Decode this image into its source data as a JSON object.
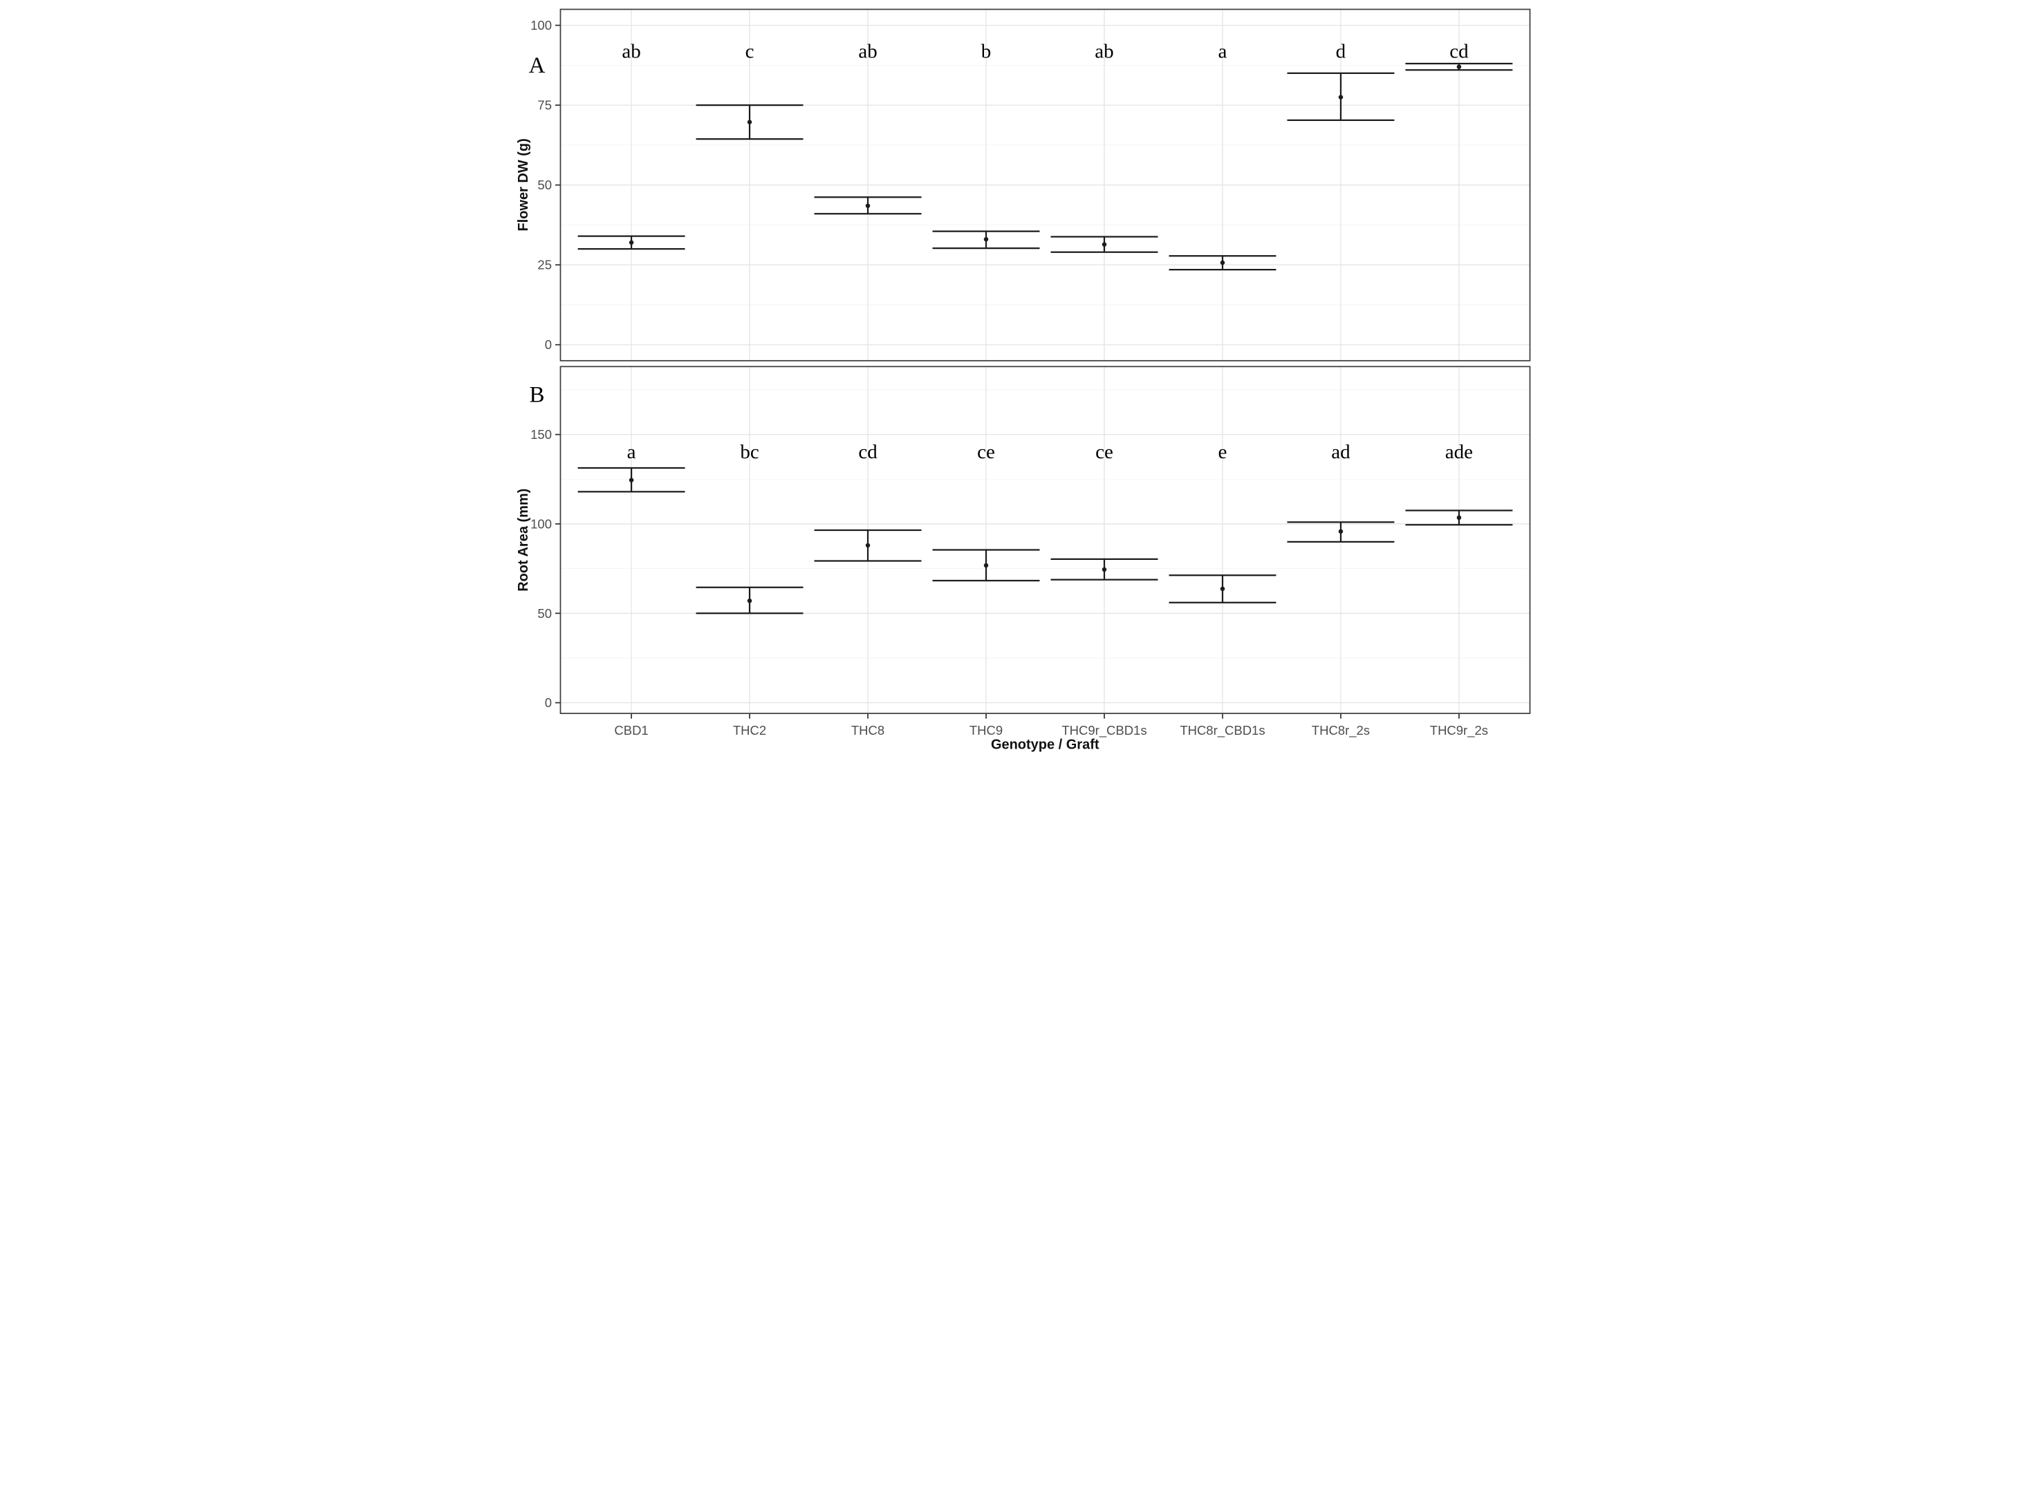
{
  "x_axis": {
    "title": "Genotype / Graft"
  },
  "styles": {
    "background": "#ffffff",
    "bar_color": "#1c1c1c",
    "grid_major": "#e4e4e4",
    "grid_minor": "#f2f2f2",
    "panel_border": "#3f3f3f",
    "tick_mark": "#333333",
    "tick_label_color": "#4d4d4d",
    "axis_title_color": "#111111",
    "letter_color": "#000000"
  },
  "chart_data": [
    {
      "type": "errorbar",
      "panel_label": "A",
      "title": "",
      "xlabel": "",
      "ylabel": "Flower DW (g)",
      "categories": [
        "CBD1",
        "THC2",
        "THC8",
        "THC9",
        "THC9r_CBD1s",
        "THC8r_CBD1s",
        "THC8r_2s",
        "THC9r_2s"
      ],
      "series": [
        {
          "name": "mean",
          "values": [
            32.0,
            69.7,
            43.5,
            33.0,
            31.4,
            25.7,
            77.5,
            87.0
          ]
        },
        {
          "name": "ci_low",
          "values": [
            30.0,
            64.4,
            41.0,
            30.2,
            29.0,
            23.5,
            70.3,
            86.0
          ]
        },
        {
          "name": "ci_high",
          "values": [
            34.0,
            75.0,
            46.2,
            35.5,
            33.8,
            27.8,
            85.0,
            88.0
          ]
        }
      ],
      "sig_letters": [
        "ab",
        "c",
        "ab",
        "b",
        "ab",
        "a",
        "d",
        "cd"
      ],
      "yticks": [
        0,
        25,
        50,
        75,
        100
      ],
      "ytick_labels": [
        "0",
        "25",
        "50",
        "75",
        "100"
      ],
      "minor_yticks": [
        12.5,
        37.5,
        62.5,
        87.5
      ],
      "ylim": [
        -5,
        105
      ],
      "letter_row_y_value": 92,
      "grid": true,
      "legend": "none",
      "show_x_labels": false
    },
    {
      "type": "errorbar",
      "panel_label": "B",
      "title": "",
      "xlabel": "Genotype / Graft",
      "ylabel": "Root Area (mm)",
      "categories": [
        "CBD1",
        "THC2",
        "THC8",
        "THC9",
        "THC9r_CBD1s",
        "THC8r_CBD1s",
        "THC8r_2s",
        "THC9r_2s"
      ],
      "series": [
        {
          "name": "mean",
          "values": [
            124.5,
            57.0,
            88.0,
            76.8,
            74.5,
            63.7,
            95.8,
            103.5
          ]
        },
        {
          "name": "ci_low",
          "values": [
            118.0,
            50.0,
            79.3,
            68.3,
            68.8,
            56.0,
            90.0,
            99.5
          ]
        },
        {
          "name": "ci_high",
          "values": [
            131.3,
            64.5,
            96.5,
            85.5,
            80.3,
            71.3,
            101.0,
            107.5
          ]
        }
      ],
      "sig_letters": [
        "a",
        "bc",
        "cd",
        "ce",
        "ce",
        "e",
        "ad",
        "ade"
      ],
      "yticks": [
        0,
        50,
        100,
        150
      ],
      "ytick_labels": [
        "0",
        "50",
        "100",
        "150"
      ],
      "minor_yticks": [
        25,
        75,
        125,
        175
      ],
      "ylim": [
        -6,
        188
      ],
      "letter_row_y_value": 140.5,
      "grid": true,
      "legend": "none",
      "show_x_labels": true
    }
  ]
}
